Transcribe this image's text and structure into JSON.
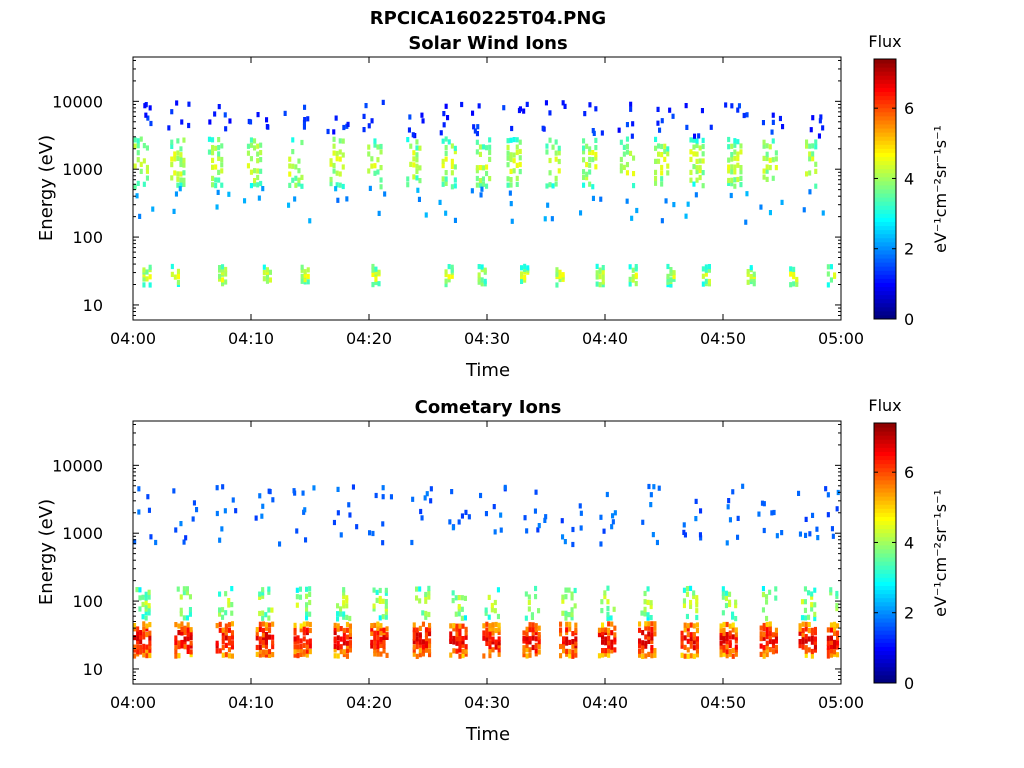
{
  "figure_title": "RPCICA160225T04.PNG",
  "chart_data": [
    {
      "type": "heatmap",
      "title": "Solar Wind Ions",
      "xlabel": "Time",
      "ylabel": "Energy (eV)",
      "x_range": [
        "04:00",
        "05:00"
      ],
      "x_ticks": [
        "04:00",
        "04:10",
        "04:20",
        "04:30",
        "04:40",
        "04:50",
        "05:00"
      ],
      "y_scale": "log",
      "y_range": [
        6,
        45000
      ],
      "y_ticks": [
        "10",
        "100",
        "1000",
        "10000"
      ],
      "colorbar": {
        "title": "Flux",
        "unit": "eV⁻¹cm⁻²sr⁻¹s⁻¹",
        "range": [
          0,
          7.4
        ],
        "ticks": [
          "0",
          "2",
          "4",
          "6"
        ],
        "colormap": "jet"
      },
      "bursts": {
        "times_min": [
          0.7,
          3.8,
          7.0,
          10.3,
          13.8,
          17.3,
          20.5,
          23.8,
          26.8,
          29.7,
          32.3,
          35.6,
          38.7,
          41.9,
          44.8,
          47.8,
          51.0,
          54.0,
          57.6
        ],
        "high_band": {
          "energy_eV": [
            500,
            2800
          ],
          "flux_range": [
            2.2,
            4.5
          ]
        },
        "low_band": {
          "energy_eV": [
            18,
            35
          ],
          "flux_range": [
            2.0,
            4.6
          ]
        },
        "low_band_burst_times_min": [
          1.2,
          3.6,
          7.6,
          11.4,
          14.6,
          20.6,
          26.8,
          29.6,
          33.2,
          36.2,
          39.6,
          42.4,
          45.6,
          48.6,
          52.4,
          56.0,
          59.2
        ]
      },
      "grid": false,
      "legend": "colorbar-right"
    },
    {
      "type": "heatmap",
      "title": "Cometary Ions",
      "xlabel": "Time",
      "ylabel": "Energy (eV)",
      "x_range": [
        "04:00",
        "05:00"
      ],
      "x_ticks": [
        "04:00",
        "04:10",
        "04:20",
        "04:30",
        "04:40",
        "04:50",
        "05:00"
      ],
      "y_scale": "log",
      "y_range": [
        6,
        45000
      ],
      "y_ticks": [
        "10",
        "100",
        "1000",
        "10000"
      ],
      "colorbar": {
        "title": "Flux",
        "unit": "eV⁻¹cm⁻²sr⁻¹s⁻¹",
        "range": [
          0,
          7.4
        ],
        "ticks": [
          "0",
          "2",
          "4",
          "6"
        ],
        "colormap": "jet"
      },
      "bursts": {
        "times_min": [
          0.8,
          4.3,
          7.8,
          11.2,
          14.4,
          17.8,
          20.9,
          24.5,
          27.6,
          30.4,
          33.8,
          36.9,
          40.2,
          43.6,
          47.2,
          50.5,
          53.9,
          57.2,
          59.6
        ],
        "high_band": {
          "energy_eV": [
            14,
            45
          ],
          "flux_range": [
            4.0,
            6.8
          ]
        },
        "mid_band": {
          "energy_eV": [
            50,
            150
          ],
          "flux_range": [
            2.0,
            4.4
          ]
        },
        "upper_band": {
          "energy_eV": [
            600,
            4500
          ],
          "flux_range": [
            1.2,
            2.6
          ]
        }
      },
      "grid": false,
      "legend": "colorbar-right"
    }
  ]
}
